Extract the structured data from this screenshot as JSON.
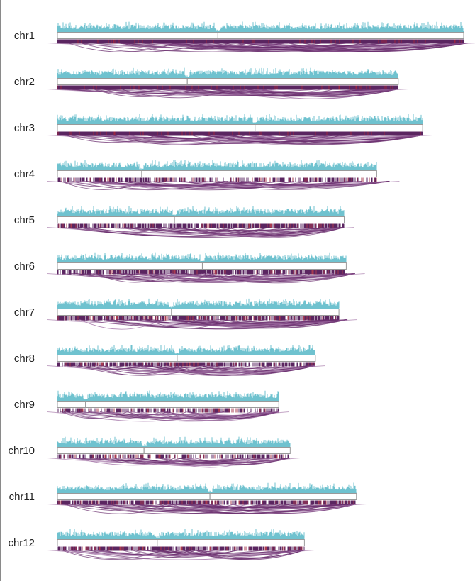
{
  "chart_data": {
    "type": "bar",
    "title": "",
    "xlabel": "",
    "ylabel": "",
    "grid": false,
    "legend": "none",
    "colors": {
      "density": "#6fc2cf",
      "arc": "#6a2d6e",
      "arc_light": "#9c6aa0",
      "marker_dark": "#5a2560",
      "marker_red": "#a0263c",
      "frame": "#9a9a9a",
      "label": "#222222",
      "rule": "#8a8a8a"
    },
    "categories": [
      "chr1",
      "chr2",
      "chr3",
      "chr4",
      "chr5",
      "chr6",
      "chr7",
      "chr8",
      "chr9",
      "chr10",
      "chr11",
      "chr12"
    ],
    "chromosomes": [
      {
        "label": "chr1",
        "length_frac": 1.0,
        "centromere_frac": 0.395,
        "arc_count": 38,
        "marker_density": "dense",
        "arc_reach_frac": 1.01
      },
      {
        "label": "chr2",
        "length_frac": 0.839,
        "centromere_frac": 0.381,
        "arc_count": 34,
        "marker_density": "dense",
        "arc_reach_frac": 1.0
      },
      {
        "label": "chr3",
        "length_frac": 0.899,
        "centromere_frac": 0.541,
        "arc_count": 34,
        "marker_density": "dense",
        "arc_reach_frac": 1.0
      },
      {
        "label": "chr4",
        "length_frac": 0.786,
        "centromere_frac": 0.264,
        "arc_count": 30,
        "marker_density": "sparse",
        "arc_reach_frac": 1.04
      },
      {
        "label": "chr5",
        "length_frac": 0.706,
        "centromere_frac": 0.408,
        "arc_count": 28,
        "marker_density": "medium",
        "arc_reach_frac": 1.0
      },
      {
        "label": "chr6",
        "length_frac": 0.711,
        "centromere_frac": 0.502,
        "arc_count": 30,
        "marker_density": "medium",
        "arc_reach_frac": 1.03
      },
      {
        "label": "chr7",
        "length_frac": 0.693,
        "centromere_frac": 0.405,
        "arc_count": 30,
        "marker_density": "medium",
        "arc_reach_frac": 1.03
      },
      {
        "label": "chr8",
        "length_frac": 0.635,
        "centromere_frac": 0.464,
        "arc_count": 28,
        "marker_density": "medium",
        "arc_reach_frac": 1.0
      },
      {
        "label": "chr9",
        "length_frac": 0.545,
        "centromere_frac": 0.127,
        "arc_count": 24,
        "marker_density": "sparse",
        "arc_reach_frac": 1.0
      },
      {
        "label": "chr10",
        "length_frac": 0.573,
        "centromere_frac": 0.372,
        "arc_count": 24,
        "marker_density": "sparse",
        "arc_reach_frac": 1.0
      },
      {
        "label": "chr11",
        "length_frac": 0.736,
        "centromere_frac": 0.51,
        "arc_count": 32,
        "marker_density": "medium",
        "arc_reach_frac": 1.0
      },
      {
        "label": "chr12",
        "length_frac": 0.608,
        "centromere_frac": 0.404,
        "arc_count": 26,
        "marker_density": "medium",
        "arc_reach_frac": 1.0
      }
    ]
  }
}
